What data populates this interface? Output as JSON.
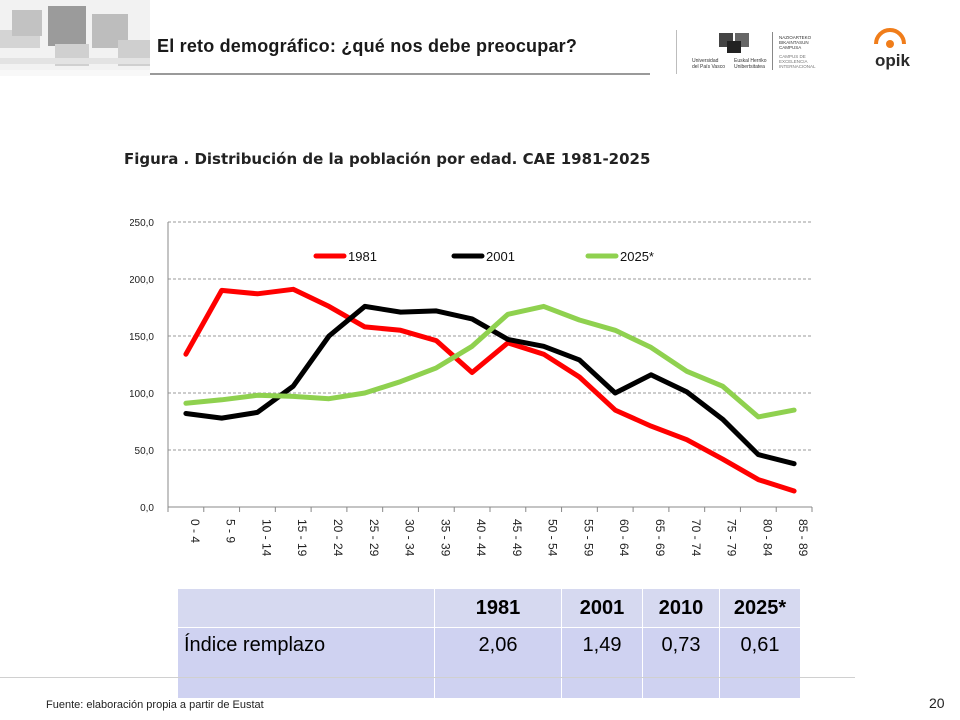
{
  "slide": {
    "title": "El reto demográfico: ¿qué nos debe preocupar?",
    "source": "Fuente: elaboración propia a partir de Eustat",
    "page_number": "20"
  },
  "logos": {
    "upv_name": "Universidad del País Vasco",
    "ehu_name": "Euskal Herriko Unibertsitatea",
    "campus_lines": [
      "NAZIOARTEKO",
      "BIKAINTASUN",
      "CAMPUSA"
    ],
    "campus_lines2": [
      "CAMPUS DE",
      "EXCELENCIA",
      "INTERNACIONAL"
    ],
    "opik": "opik"
  },
  "chart_data": {
    "type": "line",
    "title": "Figura . Distribución de la población por edad. CAE 1981-2025",
    "categories": [
      "0 - 4",
      "5 - 9",
      "10 - 14",
      "15 - 19",
      "20 - 24",
      "25 - 29",
      "30 - 34",
      "35 - 39",
      "40 - 44",
      "45 - 49",
      "50 - 54",
      "55 - 59",
      "60 - 64",
      "65 - 69",
      "70 - 74",
      "75 - 79",
      "80 - 84",
      "85 - 89"
    ],
    "ylim": [
      0,
      250
    ],
    "yticks": [
      "0,0",
      "50,0",
      "100,0",
      "150,0",
      "200,0",
      "250,0"
    ],
    "grid": true,
    "legend": "top",
    "series": [
      {
        "name": "1981",
        "color": "#ff0000",
        "values": [
          134,
          190,
          187,
          191,
          176,
          158,
          155,
          146,
          118,
          144,
          134,
          114,
          85,
          71,
          59,
          42,
          24,
          14
        ]
      },
      {
        "name": "2001",
        "color": "#000000",
        "values": [
          82,
          78,
          83,
          106,
          150,
          176,
          171,
          172,
          165,
          147,
          141,
          129,
          100,
          116,
          101,
          77,
          46,
          38
        ]
      },
      {
        "name": "2025*",
        "color": "#8fd14f",
        "values": [
          91,
          94,
          98,
          97,
          95,
          100,
          110,
          122,
          141,
          169,
          176,
          164,
          155,
          140,
          119,
          106,
          79,
          85
        ]
      }
    ]
  },
  "table": {
    "headers": [
      "",
      "1981",
      "2001",
      "2010",
      "2025*"
    ],
    "row_label": "Índice remplazo",
    "values": [
      "2,06",
      "1,49",
      "0,73",
      "0,61"
    ]
  }
}
